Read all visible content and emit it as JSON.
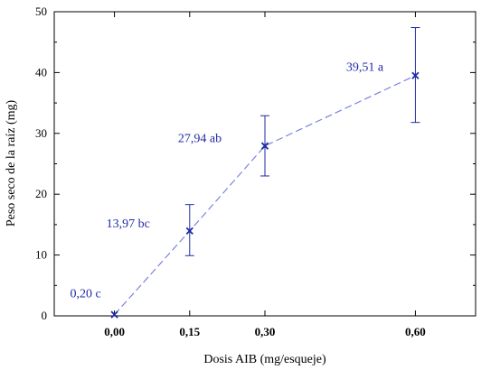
{
  "chart_data": {
    "type": "line",
    "x_categories": [
      "0,00",
      "0,15",
      "0,30",
      "0,60"
    ],
    "x": [
      0.0,
      0.15,
      0.3,
      0.6
    ],
    "xlim": [
      -0.12,
      0.72
    ],
    "ylim": [
      0,
      50
    ],
    "y_ticks": [
      0,
      10,
      20,
      30,
      40,
      50
    ],
    "y_tick_labels": [
      "0",
      "10",
      "20",
      "30",
      "40",
      "50"
    ],
    "xlabel": "Dosis AIB (mg/esqueje)",
    "ylabel": "Peso seco de la raíz (mg)",
    "grid": false,
    "series": [
      {
        "values": [
          0.2,
          13.97,
          27.94,
          39.51
        ],
        "error_low": [
          0.2,
          9.9,
          23.0,
          31.8
        ],
        "error_high": [
          0.2,
          18.3,
          32.9,
          47.4
        ],
        "point_labels": [
          "0,20 c",
          "13,97 bc",
          "27,94 ab",
          "39,51 a"
        ],
        "color": "#1f2aa6",
        "line_style": "dashed",
        "marker": "x"
      }
    ]
  }
}
